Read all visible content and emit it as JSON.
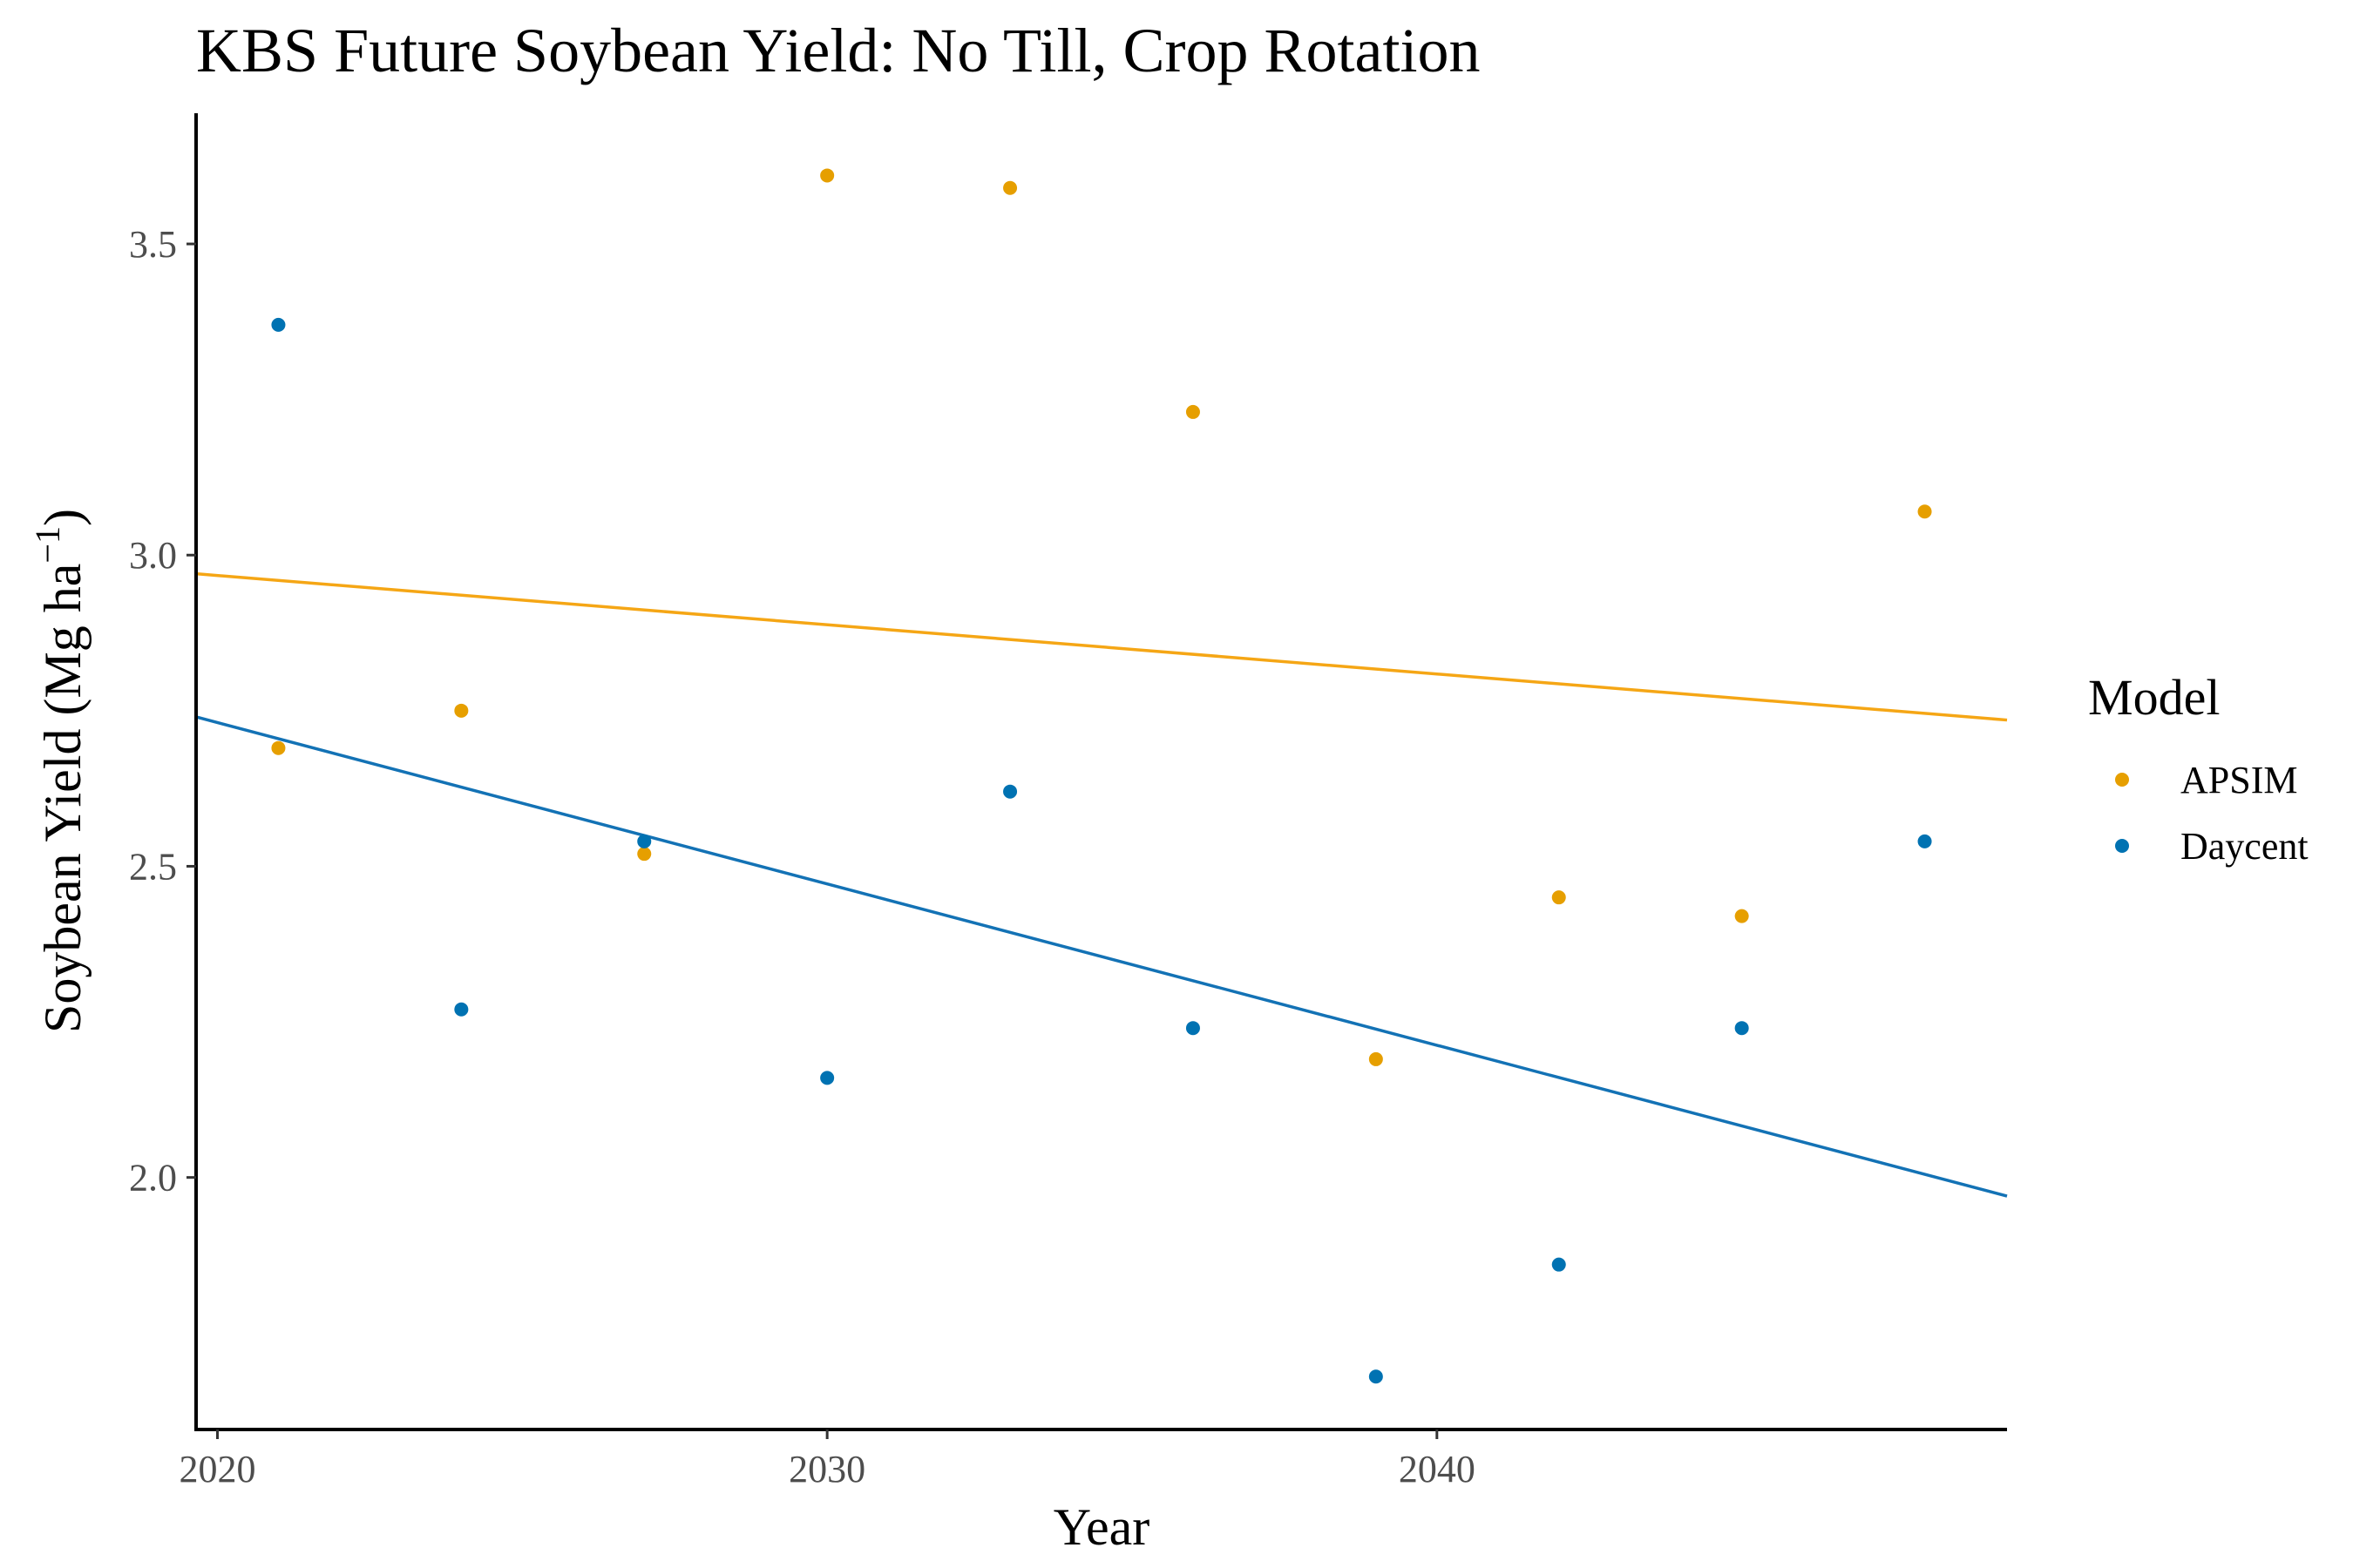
{
  "chart_data": {
    "type": "scatter",
    "title": "KBS Future Soybean Yield:  No Till, Crop Rotation",
    "xlabel": "Year",
    "ylabel_main": "Soybean Yield (Mg ha",
    "ylabel_sup": "−1",
    "ylabel_end": ")",
    "xlim": [
      2019.65,
      2049.35
    ],
    "ylim": [
      1.595,
      3.71
    ],
    "x_ticks": [
      2020,
      2030,
      2040
    ],
    "y_ticks": [
      2.0,
      2.5,
      3.0,
      3.5
    ],
    "y_tick_labels": [
      "2.0",
      "2.5",
      "3.0",
      "3.5"
    ],
    "grid": false,
    "legend": {
      "title": "Model",
      "position": "right"
    },
    "series": [
      {
        "name": "APSIM",
        "color": "#E69F00",
        "line_color": "#F5A615",
        "x": [
          2021,
          2024,
          2027,
          2030,
          2033,
          2036,
          2039,
          2042,
          2045,
          2048
        ],
        "y": [
          2.69,
          2.75,
          2.52,
          3.61,
          3.59,
          3.23,
          2.19,
          2.45,
          2.42,
          3.07
        ],
        "trend": {
          "x": [
            2019.65,
            2049.35
          ],
          "y": [
            2.97,
            2.735
          ]
        }
      },
      {
        "name": "Daycent",
        "color": "#0072B2",
        "line_color": "#1372B5",
        "x": [
          2021,
          2024,
          2027,
          2030,
          2033,
          2036,
          2039,
          2042,
          2045,
          2048
        ],
        "y": [
          3.37,
          2.27,
          2.54,
          2.16,
          2.62,
          2.24,
          1.68,
          1.86,
          2.24,
          2.54
        ],
        "trend": {
          "x": [
            2019.65,
            2049.35
          ],
          "y": [
            2.74,
            1.97
          ]
        }
      }
    ]
  }
}
